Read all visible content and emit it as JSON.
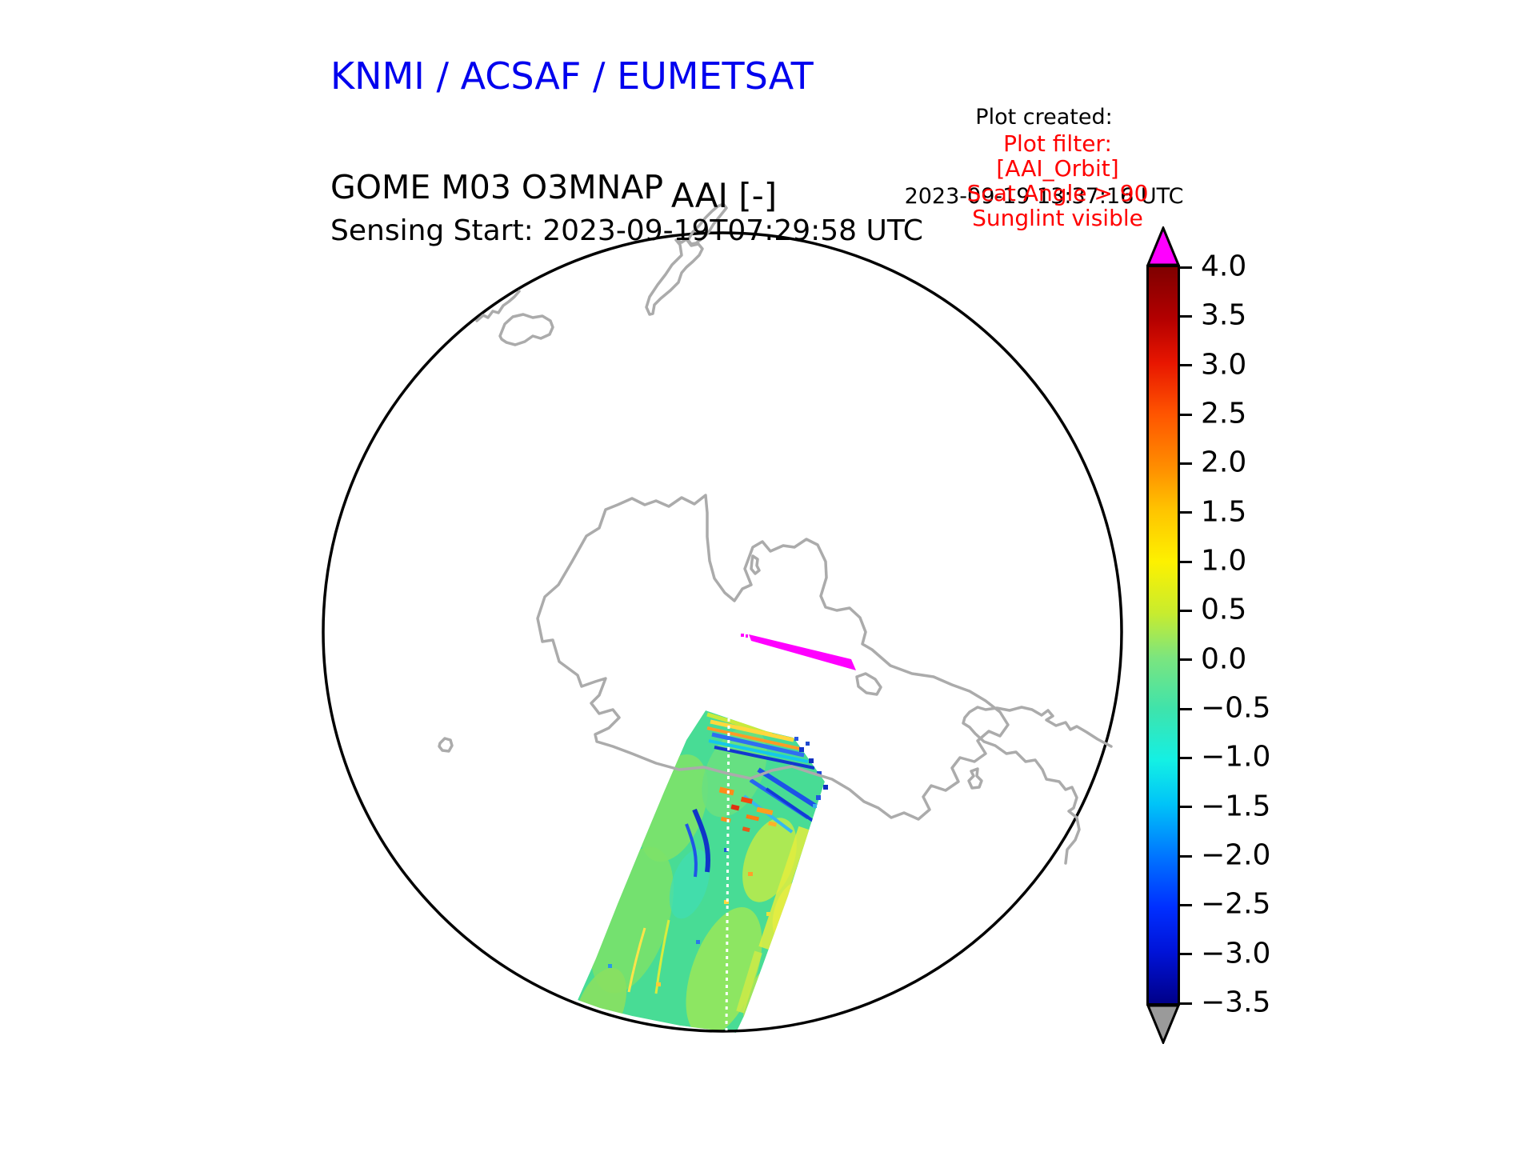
{
  "header": {
    "org_title": "KNMI / ACSAF / EUMETSAT",
    "product_name": "GOME M03 O3MNAP",
    "sensing_start": "Sensing Start: 2023-09-19T07:29:58 UTC",
    "plot_created_label": "Plot created:",
    "plot_created_value": "2023-09-19 13:37:16 UTC"
  },
  "plot_filter": {
    "color": "#ff0000",
    "lines": [
      "Plot filter:",
      "[AAI_Orbit]",
      "Scat Angle > 90",
      "Sunglint visible"
    ]
  },
  "map_title": "AAI [-]",
  "colorbar": {
    "tick_labels": [
      "4.0",
      "3.5",
      "3.0",
      "2.5",
      "2.0",
      "1.5",
      "1.0",
      "0.5",
      "0.0",
      "−0.5",
      "−1.0",
      "−1.5",
      "−2.0",
      "−2.5",
      "−3.0",
      "−3.5"
    ],
    "over_color": "#ff00ff",
    "under_color": "#9a9a9a",
    "outline_color": "#000000",
    "gradient": [
      [
        0,
        "#7f0000"
      ],
      [
        7,
        "#b30000"
      ],
      [
        13,
        "#e81600"
      ],
      [
        20,
        "#ff5500"
      ],
      [
        27,
        "#ff8c00"
      ],
      [
        33,
        "#ffc400"
      ],
      [
        40,
        "#fdf100"
      ],
      [
        47,
        "#c8ec2e"
      ],
      [
        53,
        "#7ce57e"
      ],
      [
        60,
        "#3fe3ab"
      ],
      [
        67,
        "#14f0e4"
      ],
      [
        73,
        "#00c3f8"
      ],
      [
        80,
        "#0075ff"
      ],
      [
        87,
        "#002fff"
      ],
      [
        93,
        "#0013d8"
      ],
      [
        100,
        "#000089"
      ]
    ]
  },
  "map": {
    "boundary_color": "#000000",
    "coastline_color": "#ababab",
    "swath_base_color": "#48dc95",
    "anomaly_color": "#ff00ff",
    "nadir_track_color": "#ffffff"
  },
  "chart_data": {
    "type": "heatmap",
    "title": "AAI [-]",
    "projection": "south polar orthographic view centered on Antarctica",
    "instrument": "GOME-2 on Metop-C (M03), O3MNAP product",
    "sensing_start_utc": "2023-09-19T07:29:58",
    "plot_created_utc": "2023-09-19 13:37:16",
    "filters_applied": [
      "AAI_Orbit",
      "Scat Angle > 90",
      "Sunglint visible"
    ],
    "colorbar": {
      "label": "AAI [-]",
      "vmin": -3.5,
      "vmax": 4.0,
      "tick_step": 0.5,
      "ticks": [
        4.0,
        3.5,
        3.0,
        2.5,
        2.0,
        1.5,
        1.0,
        0.5,
        0.0,
        -0.5,
        -1.0,
        -1.5,
        -2.0,
        -2.5,
        -3.0,
        -3.5
      ],
      "over_color": "#ff00ff",
      "under_color": "#9a9a9a",
      "position": "right"
    },
    "layers": [
      {
        "name": "orbit-swath",
        "description": "single descending orbit swath crossing Antarctica toward the lower-left limb; AAI mostly -1.0 to +1.5 (green/cyan/yellow), thin cloud streaks down to about -3 (blue), isolated dust/smoke spots up to about +3 (orange/red)"
      },
      {
        "name": "sunglint-anomaly",
        "description": "short magenta segment of over-range values (> 4.0) near the pole, flagged sunglint"
      },
      {
        "name": "nadir-track",
        "description": "white dashed line along the middle of the swath"
      },
      {
        "name": "coastlines",
        "description": "gray coastlines: Antarctica, New Zealand (top), Tasmania area (upper left), Tierra del Fuego / South America tip (right)"
      },
      {
        "name": "map-boundary",
        "description": "black circle marking the edge of the plotted hemisphere"
      }
    ],
    "grid": false,
    "legend_position": "right colorbar"
  }
}
